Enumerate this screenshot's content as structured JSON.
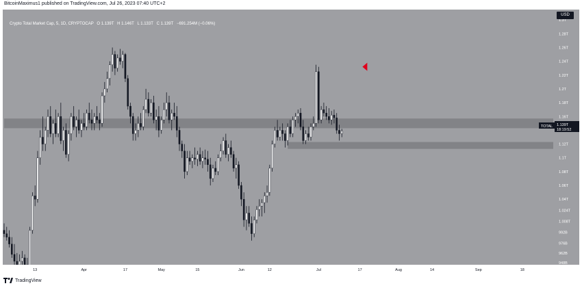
{
  "header": {
    "published_text": "BitcoinMaximus1 published on TradingView.com, Jul 26, 2023 07:40 UTC+2"
  },
  "symbol": {
    "name": "Crypto Total Market Cap, 5, 1D, CRYPTOCAP",
    "open": "O 1.139T",
    "high": "H 1.146T",
    "low": "L 1.133T",
    "close": "C 1.139T",
    "change": "−691.254M (−0.06%)"
  },
  "currency_badge": "USD",
  "price_tag": {
    "label": "TOTAL",
    "value": "1.139T",
    "countdown": "18:19:52"
  },
  "footer": {
    "brand": "TradingView"
  },
  "colors": {
    "background": "#9e9fa3",
    "up_candle": "#ffffff",
    "down_candle": "#131722",
    "zone": "#7d7e82",
    "marker": "#e0001b"
  },
  "chart_data": {
    "type": "candlestick",
    "ylim": [
      0.945,
      1.315
    ],
    "y_ticks": [
      "1.3T",
      "1.28T",
      "1.26T",
      "1.24T",
      "1.22T",
      "1.2T",
      "1.18T",
      "1.16T",
      "1.14T",
      "1.12T",
      "1.1T",
      "1.08T",
      "1.06T",
      "1.04T",
      "1.024T",
      "1.008T",
      "992B",
      "976B",
      "962B",
      "948B"
    ],
    "y_tick_values": [
      1.3,
      1.28,
      1.26,
      1.24,
      1.22,
      1.2,
      1.18,
      1.16,
      1.14,
      1.12,
      1.1,
      1.08,
      1.06,
      1.04,
      1.024,
      1.008,
      0.992,
      0.976,
      0.962,
      0.948
    ],
    "x_ticks": [
      {
        "label": "13",
        "day": 12
      },
      {
        "label": "Apr",
        "day": 31
      },
      {
        "label": "17",
        "day": 47
      },
      {
        "label": "May",
        "day": 61
      },
      {
        "label": "15",
        "day": 75
      },
      {
        "label": "Jun",
        "day": 92
      },
      {
        "label": "12",
        "day": 103
      },
      {
        "label": "Jul",
        "day": 122
      },
      {
        "label": "17",
        "day": 138
      },
      {
        "label": "Aug",
        "day": 153
      },
      {
        "label": "14",
        "day": 166
      },
      {
        "label": "Sep",
        "day": 184
      },
      {
        "label": "18",
        "day": 201
      }
    ],
    "zones": [
      {
        "name": "resistance-zone",
        "low": 1.143,
        "high": 1.157,
        "from_day": 0,
        "to_day": 213
      },
      {
        "name": "support-zone",
        "low": 1.113,
        "high": 1.123,
        "from_day": 110,
        "to_day": 213
      }
    ],
    "marker": {
      "day": 139,
      "value": 1.232
    },
    "candles": [
      [
        0,
        0.995,
        1.005,
        0.985,
        0.99
      ],
      [
        1,
        0.99,
        1.0,
        0.98,
        0.985
      ],
      [
        2,
        0.985,
        0.995,
        0.97,
        0.975
      ],
      [
        3,
        0.975,
        0.985,
        0.955,
        0.96
      ],
      [
        4,
        0.96,
        0.975,
        0.945,
        0.95
      ],
      [
        5,
        0.95,
        0.962,
        0.94,
        0.945
      ],
      [
        6,
        0.945,
        0.96,
        0.935,
        0.95
      ],
      [
        7,
        0.95,
        0.965,
        0.945,
        0.955
      ],
      [
        8,
        0.955,
        0.96,
        0.94,
        0.945
      ],
      [
        9,
        0.945,
        0.955,
        0.93,
        0.94
      ],
      [
        10,
        0.94,
        1.0,
        0.935,
        0.995
      ],
      [
        11,
        0.995,
        1.05,
        0.99,
        1.045
      ],
      [
        12,
        1.045,
        1.06,
        1.03,
        1.04
      ],
      [
        13,
        1.04,
        1.11,
        1.035,
        1.1
      ],
      [
        14,
        1.1,
        1.14,
        1.09,
        1.13
      ],
      [
        15,
        1.13,
        1.16,
        1.11,
        1.12
      ],
      [
        16,
        1.12,
        1.145,
        1.11,
        1.14
      ],
      [
        17,
        1.14,
        1.17,
        1.13,
        1.16
      ],
      [
        18,
        1.16,
        1.175,
        1.13,
        1.135
      ],
      [
        19,
        1.135,
        1.155,
        1.12,
        1.15
      ],
      [
        20,
        1.15,
        1.17,
        1.13,
        1.135
      ],
      [
        21,
        1.135,
        1.165,
        1.13,
        1.16
      ],
      [
        22,
        1.16,
        1.18,
        1.12,
        1.125
      ],
      [
        23,
        1.125,
        1.145,
        1.11,
        1.14
      ],
      [
        24,
        1.14,
        1.15,
        1.1,
        1.105
      ],
      [
        25,
        1.105,
        1.14,
        1.095,
        1.135
      ],
      [
        26,
        1.135,
        1.165,
        1.125,
        1.16
      ],
      [
        27,
        1.16,
        1.175,
        1.14,
        1.145
      ],
      [
        28,
        1.145,
        1.16,
        1.13,
        1.155
      ],
      [
        29,
        1.155,
        1.17,
        1.135,
        1.14
      ],
      [
        30,
        1.14,
        1.155,
        1.13,
        1.15
      ],
      [
        31,
        1.15,
        1.165,
        1.14,
        1.145
      ],
      [
        32,
        1.145,
        1.17,
        1.14,
        1.165
      ],
      [
        33,
        1.165,
        1.18,
        1.15,
        1.155
      ],
      [
        34,
        1.155,
        1.17,
        1.14,
        1.15
      ],
      [
        35,
        1.15,
        1.165,
        1.14,
        1.16
      ],
      [
        36,
        1.16,
        1.175,
        1.15,
        1.155
      ],
      [
        37,
        1.155,
        1.165,
        1.14,
        1.15
      ],
      [
        38,
        1.15,
        1.195,
        1.145,
        1.19
      ],
      [
        39,
        1.19,
        1.21,
        1.18,
        1.2
      ],
      [
        40,
        1.2,
        1.225,
        1.195,
        1.215
      ],
      [
        41,
        1.215,
        1.24,
        1.205,
        1.235
      ],
      [
        42,
        1.235,
        1.26,
        1.225,
        1.25
      ],
      [
        43,
        1.25,
        1.255,
        1.22,
        1.23
      ],
      [
        44,
        1.23,
        1.25,
        1.225,
        1.245
      ],
      [
        45,
        1.245,
        1.258,
        1.235,
        1.24
      ],
      [
        46,
        1.24,
        1.255,
        1.23,
        1.25
      ],
      [
        47,
        1.25,
        1.252,
        1.21,
        1.215
      ],
      [
        48,
        1.215,
        1.22,
        1.17,
        1.175
      ],
      [
        49,
        1.175,
        1.18,
        1.15,
        1.16
      ],
      [
        50,
        1.16,
        1.165,
        1.125,
        1.135
      ],
      [
        51,
        1.135,
        1.15,
        1.125,
        1.14
      ],
      [
        52,
        1.14,
        1.16,
        1.13,
        1.15
      ],
      [
        53,
        1.15,
        1.165,
        1.14,
        1.145
      ],
      [
        54,
        1.145,
        1.175,
        1.14,
        1.17
      ],
      [
        55,
        1.17,
        1.2,
        1.165,
        1.185
      ],
      [
        56,
        1.185,
        1.195,
        1.16,
        1.165
      ],
      [
        57,
        1.165,
        1.185,
        1.16,
        1.18
      ],
      [
        58,
        1.18,
        1.19,
        1.15,
        1.155
      ],
      [
        59,
        1.155,
        1.17,
        1.14,
        1.16
      ],
      [
        60,
        1.16,
        1.175,
        1.13,
        1.14
      ],
      [
        61,
        1.14,
        1.16,
        1.135,
        1.155
      ],
      [
        62,
        1.155,
        1.18,
        1.15,
        1.17
      ],
      [
        63,
        1.17,
        1.195,
        1.16,
        1.18
      ],
      [
        64,
        1.18,
        1.19,
        1.15,
        1.155
      ],
      [
        65,
        1.155,
        1.17,
        1.14,
        1.165
      ],
      [
        66,
        1.165,
        1.18,
        1.155,
        1.16
      ],
      [
        67,
        1.16,
        1.175,
        1.13,
        1.14
      ],
      [
        68,
        1.14,
        1.145,
        1.11,
        1.12
      ],
      [
        69,
        1.12,
        1.125,
        1.1,
        1.11
      ],
      [
        70,
        1.11,
        1.12,
        1.07,
        1.08
      ],
      [
        71,
        1.08,
        1.11,
        1.075,
        1.1
      ],
      [
        72,
        1.1,
        1.11,
        1.09,
        1.095
      ],
      [
        73,
        1.095,
        1.105,
        1.085,
        1.1
      ],
      [
        74,
        1.1,
        1.115,
        1.09,
        1.098
      ],
      [
        75,
        1.098,
        1.11,
        1.088,
        1.105
      ],
      [
        76,
        1.105,
        1.115,
        1.09,
        1.095
      ],
      [
        77,
        1.095,
        1.11,
        1.085,
        1.1
      ],
      [
        78,
        1.1,
        1.112,
        1.09,
        1.098
      ],
      [
        79,
        1.098,
        1.11,
        1.08,
        1.09
      ],
      [
        80,
        1.09,
        1.1,
        1.06,
        1.07
      ],
      [
        81,
        1.07,
        1.09,
        1.065,
        1.085
      ],
      [
        82,
        1.085,
        1.095,
        1.075,
        1.08
      ],
      [
        83,
        1.08,
        1.105,
        1.075,
        1.1
      ],
      [
        84,
        1.1,
        1.12,
        1.095,
        1.11
      ],
      [
        85,
        1.11,
        1.13,
        1.105,
        1.125
      ],
      [
        86,
        1.125,
        1.135,
        1.1,
        1.105
      ],
      [
        87,
        1.105,
        1.12,
        1.095,
        1.115
      ],
      [
        88,
        1.115,
        1.125,
        1.1,
        1.105
      ],
      [
        89,
        1.105,
        1.11,
        1.08,
        1.085
      ],
      [
        90,
        1.085,
        1.1,
        1.07,
        1.09
      ],
      [
        91,
        1.09,
        1.095,
        1.055,
        1.06
      ],
      [
        92,
        1.06,
        1.065,
        1.03,
        1.04
      ],
      [
        93,
        1.04,
        1.05,
        1.0,
        1.01
      ],
      [
        94,
        1.01,
        1.03,
        0.995,
        1.02
      ],
      [
        95,
        1.02,
        1.03,
        1.0,
        1.005
      ],
      [
        96,
        1.005,
        1.015,
        0.98,
        0.99
      ],
      [
        97,
        0.99,
        1.015,
        0.985,
        1.01
      ],
      [
        98,
        1.01,
        1.03,
        1.005,
        1.025
      ],
      [
        99,
        1.025,
        1.04,
        1.015,
        1.03
      ],
      [
        100,
        1.03,
        1.04,
        1.015,
        1.035
      ],
      [
        101,
        1.035,
        1.05,
        1.02,
        1.045
      ],
      [
        102,
        1.045,
        1.06,
        1.035,
        1.05
      ],
      [
        103,
        1.05,
        1.09,
        1.045,
        1.085
      ],
      [
        104,
        1.085,
        1.125,
        1.08,
        1.12
      ],
      [
        105,
        1.12,
        1.145,
        1.115,
        1.14
      ],
      [
        106,
        1.14,
        1.155,
        1.125,
        1.13
      ],
      [
        107,
        1.13,
        1.145,
        1.125,
        1.14
      ],
      [
        108,
        1.14,
        1.15,
        1.125,
        1.135
      ],
      [
        109,
        1.135,
        1.14,
        1.115,
        1.125
      ],
      [
        110,
        1.125,
        1.15,
        1.118,
        1.145
      ],
      [
        111,
        1.145,
        1.155,
        1.13,
        1.135
      ],
      [
        112,
        1.135,
        1.16,
        1.13,
        1.155
      ],
      [
        113,
        1.155,
        1.165,
        1.145,
        1.16
      ],
      [
        114,
        1.16,
        1.17,
        1.15,
        1.165
      ],
      [
        115,
        1.165,
        1.172,
        1.14,
        1.145
      ],
      [
        116,
        1.145,
        1.155,
        1.12,
        1.125
      ],
      [
        117,
        1.125,
        1.14,
        1.12,
        1.135
      ],
      [
        118,
        1.135,
        1.145,
        1.125,
        1.13
      ],
      [
        119,
        1.13,
        1.15,
        1.125,
        1.145
      ],
      [
        120,
        1.145,
        1.16,
        1.14,
        1.15
      ],
      [
        121,
        1.15,
        1.235,
        1.145,
        1.225
      ],
      [
        122,
        1.225,
        1.232,
        1.15,
        1.155
      ],
      [
        123,
        1.155,
        1.175,
        1.15,
        1.17
      ],
      [
        124,
        1.17,
        1.18,
        1.16,
        1.165
      ],
      [
        125,
        1.165,
        1.175,
        1.155,
        1.16
      ],
      [
        126,
        1.16,
        1.172,
        1.15,
        1.155
      ],
      [
        127,
        1.155,
        1.168,
        1.148,
        1.162
      ],
      [
        128,
        1.162,
        1.17,
        1.15,
        1.158
      ],
      [
        129,
        1.158,
        1.165,
        1.135,
        1.14
      ],
      [
        130,
        1.14,
        1.148,
        1.125,
        1.135
      ],
      [
        131,
        1.135,
        1.142,
        1.13,
        1.139
      ]
    ]
  }
}
